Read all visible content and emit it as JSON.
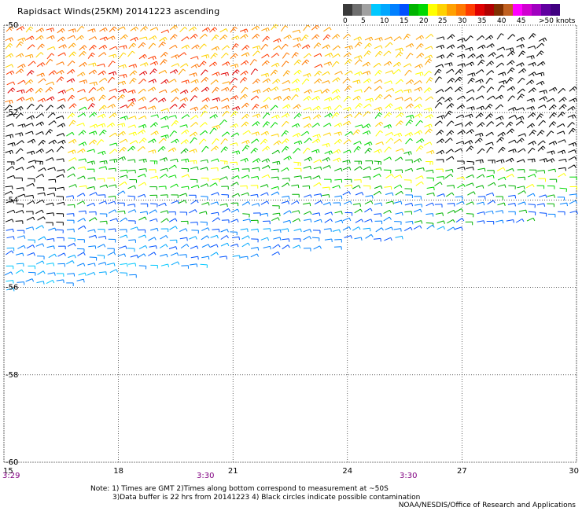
{
  "title": "Rapidsact Winds(25KM) 20141223 ascending",
  "legend": {
    "colors": [
      "#3a3a3a",
      "#6e6e6e",
      "#a0a0a0",
      "#00c8ff",
      "#00a8ff",
      "#0080ff",
      "#0050ff",
      "#00b400",
      "#00d800",
      "#ffff00",
      "#ffd200",
      "#ffa000",
      "#ff7800",
      "#ff3c00",
      "#e00000",
      "#b00000",
      "#803000",
      "#c06020",
      "#ff00ff",
      "#d000d0",
      "#a000c0",
      "#6000a0",
      "#400080"
    ],
    "labels": [
      "0",
      "5",
      "10",
      "15",
      "20",
      "25",
      "30",
      "35",
      "40",
      "45",
      ">50 knots"
    ]
  },
  "axes": {
    "x_ticks": [
      "15",
      "18",
      "21",
      "24",
      "27",
      "30"
    ],
    "y_ticks": [
      "-50",
      "-52",
      "-54",
      "-56",
      "-58",
      "-60"
    ],
    "x_range": [
      15,
      30
    ],
    "y_range": [
      -50,
      -60
    ]
  },
  "times": [
    "3:29",
    "3:30",
    "3:30"
  ],
  "notes": {
    "line1": "Note: 1) Times are GMT 2)Times along bottom correspond to measurement at ~50S",
    "line2": "3)Data buffer is 22 hrs from 20141223 4) Black circles indicate possible contamination"
  },
  "credit": "NOAA/NESDIS/Office of Research and Applications"
}
